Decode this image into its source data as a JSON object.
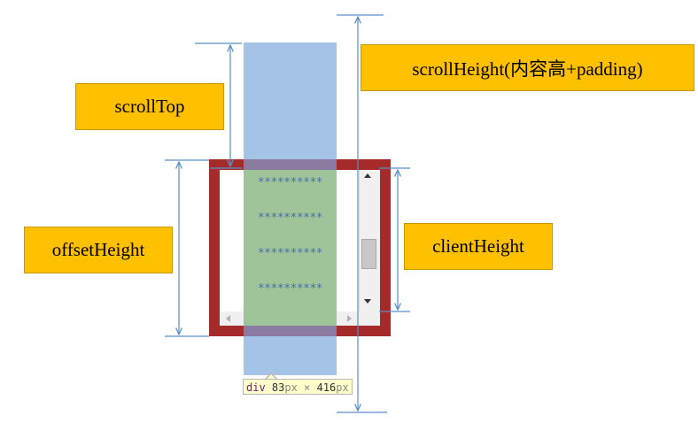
{
  "labels": {
    "scroll_top": "scrollTop",
    "scroll_height": "scrollHeight(内容高+padding)",
    "offset_height": "offsetHeight",
    "client_height": "clientHeight"
  },
  "content_rows": [
    "**********",
    "**********",
    "**********",
    "**********"
  ],
  "tooltip": {
    "tag": "div",
    "width_value": "83",
    "width_unit": "px",
    "times": " × ",
    "height_value": "416",
    "height_unit": "px"
  },
  "scroll_position": 0.5,
  "colors": {
    "label_fill": "#ffc000",
    "frame_border": "#a52a2a",
    "content_fill": "#a4c3e6",
    "visible_content": "#9fc49a",
    "dimension_lines": "#5b8fc9"
  }
}
